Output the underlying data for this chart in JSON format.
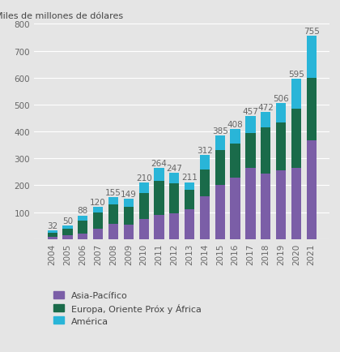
{
  "years": [
    2004,
    2005,
    2006,
    2007,
    2008,
    2009,
    2010,
    2011,
    2012,
    2013,
    2014,
    2015,
    2016,
    2017,
    2018,
    2019,
    2020,
    2021
  ],
  "totals": [
    32,
    50,
    88,
    120,
    155,
    149,
    210,
    264,
    247,
    211,
    312,
    385,
    408,
    457,
    472,
    506,
    595,
    755
  ],
  "asia_pacifico": [
    8,
    13,
    22,
    40,
    58,
    55,
    75,
    90,
    95,
    110,
    160,
    200,
    230,
    265,
    245,
    255,
    265,
    368
  ],
  "europa_oriente": [
    15,
    25,
    48,
    58,
    72,
    65,
    95,
    125,
    112,
    72,
    100,
    130,
    125,
    130,
    170,
    180,
    220,
    230
  ],
  "america": [
    9,
    12,
    18,
    22,
    25,
    29,
    40,
    49,
    40,
    29,
    52,
    55,
    53,
    62,
    57,
    71,
    110,
    157
  ],
  "color_asia": "#7b5ea7",
  "color_europa": "#1a6b4a",
  "color_america": "#29b5d8",
  "background_color": "#e5e5e5",
  "ylabel": "Miles de millones de dólares",
  "ylim": [
    0,
    800
  ],
  "yticks": [
    0,
    100,
    200,
    300,
    400,
    500,
    600,
    700,
    800
  ],
  "legend_labels": [
    "Asia-Pacífico",
    "Europa, Oriente Próx y África",
    "América"
  ],
  "label_fontsize": 8,
  "tick_fontsize": 7.5,
  "legend_fontsize": 8,
  "total_fontsize": 7.5
}
